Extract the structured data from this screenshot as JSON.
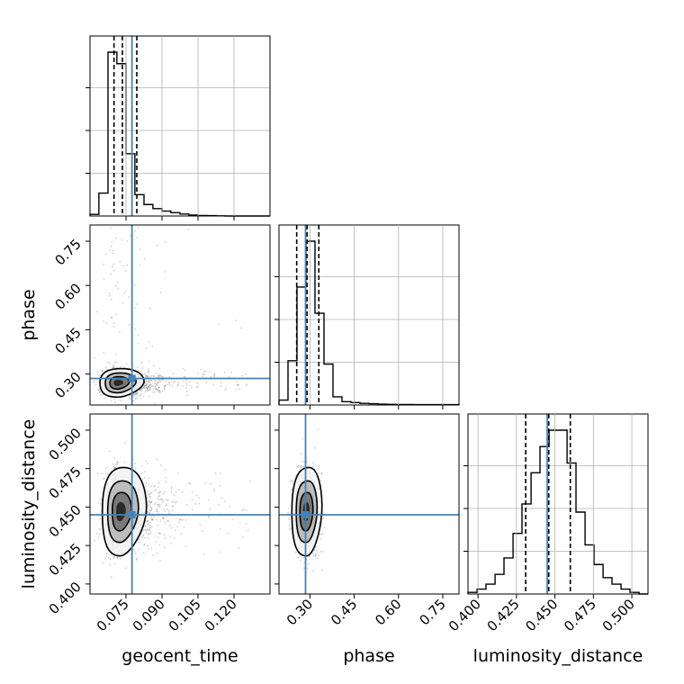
{
  "chart_data": {
    "type": "corner",
    "parameters": [
      "geocent_time",
      "phase",
      "luminosity_distance"
    ],
    "axis_labels": {
      "geocent_time": "geocent_time",
      "phase": "phase",
      "luminosity_distance": "luminosity_distance"
    },
    "ranges": {
      "geocent_time": [
        0.06,
        0.135
      ],
      "phase": [
        0.195,
        0.805
      ],
      "luminosity_distance": [
        0.3935,
        0.5105
      ]
    },
    "ticks": {
      "geocent_time": [
        0.075,
        0.09,
        0.105,
        0.12
      ],
      "phase": [
        0.3,
        0.45,
        0.6,
        0.75
      ],
      "luminosity_distance": [
        0.4,
        0.425,
        0.45,
        0.475,
        0.5
      ]
    },
    "tick_labels": {
      "geocent_time": [
        "0.075",
        "0.090",
        "0.105",
        "0.120"
      ],
      "phase": [
        "0.30",
        "0.45",
        "0.60",
        "0.75"
      ],
      "luminosity_distance": [
        "0.400",
        "0.425",
        "0.450",
        "0.475",
        "0.500"
      ]
    },
    "truths": {
      "geocent_time": 0.0775,
      "phase": 0.285,
      "luminosity_distance": 0.445
    },
    "quantiles": {
      "geocent_time": [
        0.07,
        0.0735,
        0.0795
      ],
      "phase": [
        0.255,
        0.29,
        0.33
      ],
      "luminosity_distance": [
        0.431,
        0.446,
        0.46
      ]
    },
    "histograms": {
      "geocent_time": {
        "edges": [
          0.06,
          0.0637,
          0.0675,
          0.0712,
          0.075,
          0.0787,
          0.0825,
          0.0862,
          0.09,
          0.0937,
          0.0975,
          0.1012,
          0.105,
          0.1087,
          0.1125,
          0.1162,
          0.12,
          0.1237,
          0.1275,
          0.1312,
          0.135
        ],
        "counts": [
          0.01,
          0.14,
          1.0,
          0.93,
          0.38,
          0.13,
          0.07,
          0.045,
          0.03,
          0.02,
          0.012,
          0.006,
          0.003,
          0.002,
          0.001,
          0.0,
          0.0,
          0.0,
          0.0,
          0.0
        ]
      },
      "phase": {
        "edges": [
          0.195,
          0.2255,
          0.256,
          0.2865,
          0.317,
          0.3475,
          0.378,
          0.4085,
          0.439,
          0.4695,
          0.5,
          0.5305,
          0.561,
          0.5915,
          0.622,
          0.6525,
          0.683,
          0.7135,
          0.744,
          0.7745,
          0.805
        ],
        "counts": [
          0.03,
          0.27,
          0.72,
          1.0,
          0.56,
          0.25,
          0.05,
          0.02,
          0.015,
          0.01,
          0.008,
          0.005,
          0.004,
          0.003,
          0.003,
          0.002,
          0.002,
          0.002,
          0.002,
          0.002
        ]
      },
      "luminosity_distance": {
        "edges": [
          0.3935,
          0.3994,
          0.4052,
          0.4111,
          0.4169,
          0.4228,
          0.4286,
          0.4345,
          0.4403,
          0.4462,
          0.452,
          0.4579,
          0.4637,
          0.4696,
          0.4754,
          0.4813,
          0.4871,
          0.493,
          0.4988,
          0.5047,
          0.5105
        ],
        "counts": [
          0.01,
          0.03,
          0.06,
          0.12,
          0.22,
          0.37,
          0.55,
          0.74,
          0.9,
          1.0,
          1.0,
          0.8,
          0.5,
          0.3,
          0.18,
          0.1,
          0.06,
          0.03,
          0.01,
          0.0
        ]
      }
    },
    "pairs": [
      {
        "x": "geocent_time",
        "y": "phase",
        "center": [
          0.0715,
          0.27
        ],
        "sigma": [
          0.0032,
          0.021
        ],
        "skew_x": 0.012,
        "tail_y": 0.55
      },
      {
        "x": "geocent_time",
        "y": "luminosity_distance",
        "center": [
          0.0725,
          0.447
        ],
        "sigma": [
          0.0032,
          0.0125
        ],
        "skew_x": 0.012,
        "tail_y": 0.0
      },
      {
        "x": "phase",
        "y": "luminosity_distance",
        "center": [
          0.287,
          0.447
        ],
        "sigma": [
          0.021,
          0.0125
        ],
        "skew_x": 0.0,
        "tail_y": 0.0
      }
    ],
    "grid": true,
    "colors": {
      "truth": "#4682b4",
      "line": "#000000",
      "grid": "#b0b0b0",
      "points": "#555555"
    }
  }
}
